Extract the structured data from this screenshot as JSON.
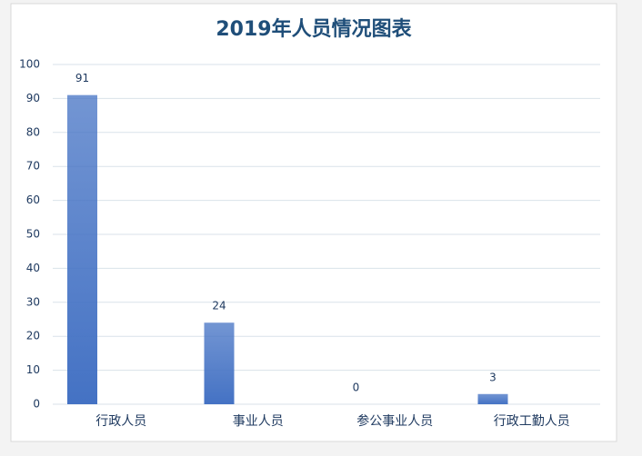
{
  "chart_data": {
    "type": "bar",
    "title": "2019年人员情况图表",
    "categories": [
      "行政人员",
      "事业人员",
      "参公事业人员",
      "行政工勤人员"
    ],
    "values": [
      91,
      24,
      0,
      3
    ],
    "color": "#4472c4",
    "ylim": [
      0,
      100
    ],
    "yticks": [
      0,
      10,
      20,
      30,
      40,
      50,
      60,
      70,
      80,
      90,
      100
    ],
    "grid": true,
    "data_labels": true
  }
}
